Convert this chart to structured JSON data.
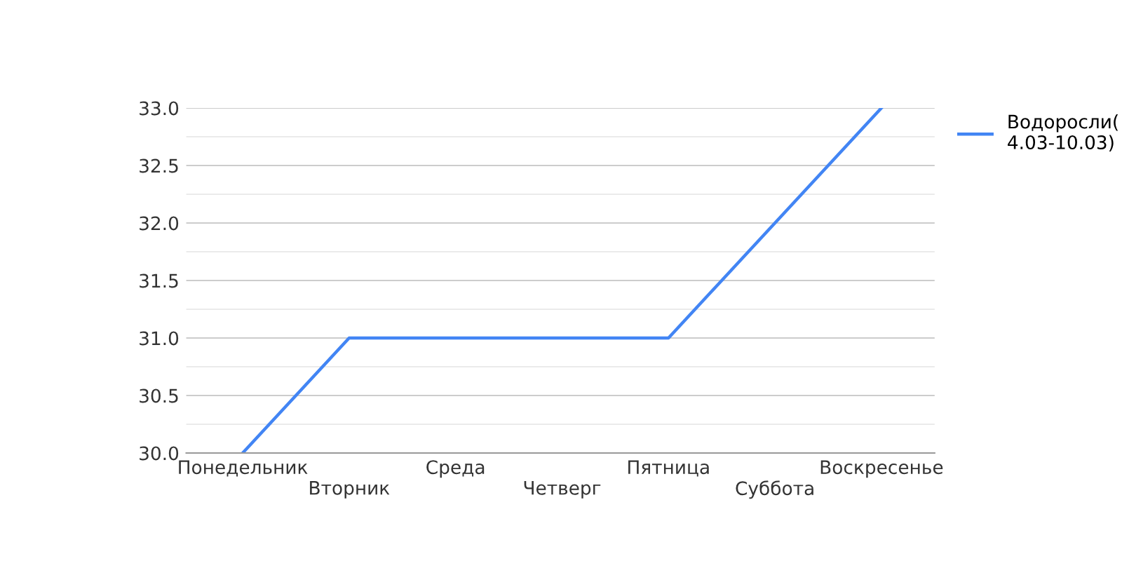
{
  "chart_data": {
    "type": "line",
    "categories": [
      "Понедельник",
      "Вторник",
      "Среда",
      "Четверг",
      "Пятница",
      "Суббота",
      "Воскресенье"
    ],
    "series": [
      {
        "name": "Водоросли(\n4.03-10.03)",
        "color": "#4285f4",
        "values": [
          30,
          31,
          31,
          31,
          31,
          32,
          33
        ]
      }
    ],
    "ylim": [
      30,
      33
    ],
    "yticks": [
      {
        "value": 30,
        "label": "30.0"
      },
      {
        "value": 30.25,
        "label": null
      },
      {
        "value": 30.5,
        "label": "30.5"
      },
      {
        "value": 30.75,
        "label": null
      },
      {
        "value": 31,
        "label": "31.0"
      },
      {
        "value": 31.25,
        "label": null
      },
      {
        "value": 31.5,
        "label": "31.5"
      },
      {
        "value": 31.75,
        "label": null
      },
      {
        "value": 32,
        "label": "32.0"
      },
      {
        "value": 32.25,
        "label": null
      },
      {
        "value": 32.5,
        "label": "32.5"
      },
      {
        "value": 32.75,
        "label": null
      },
      {
        "value": 33,
        "label": "33.0"
      }
    ],
    "grid": "y",
    "legend": "right",
    "marker": "none",
    "line_style": "solid"
  }
}
